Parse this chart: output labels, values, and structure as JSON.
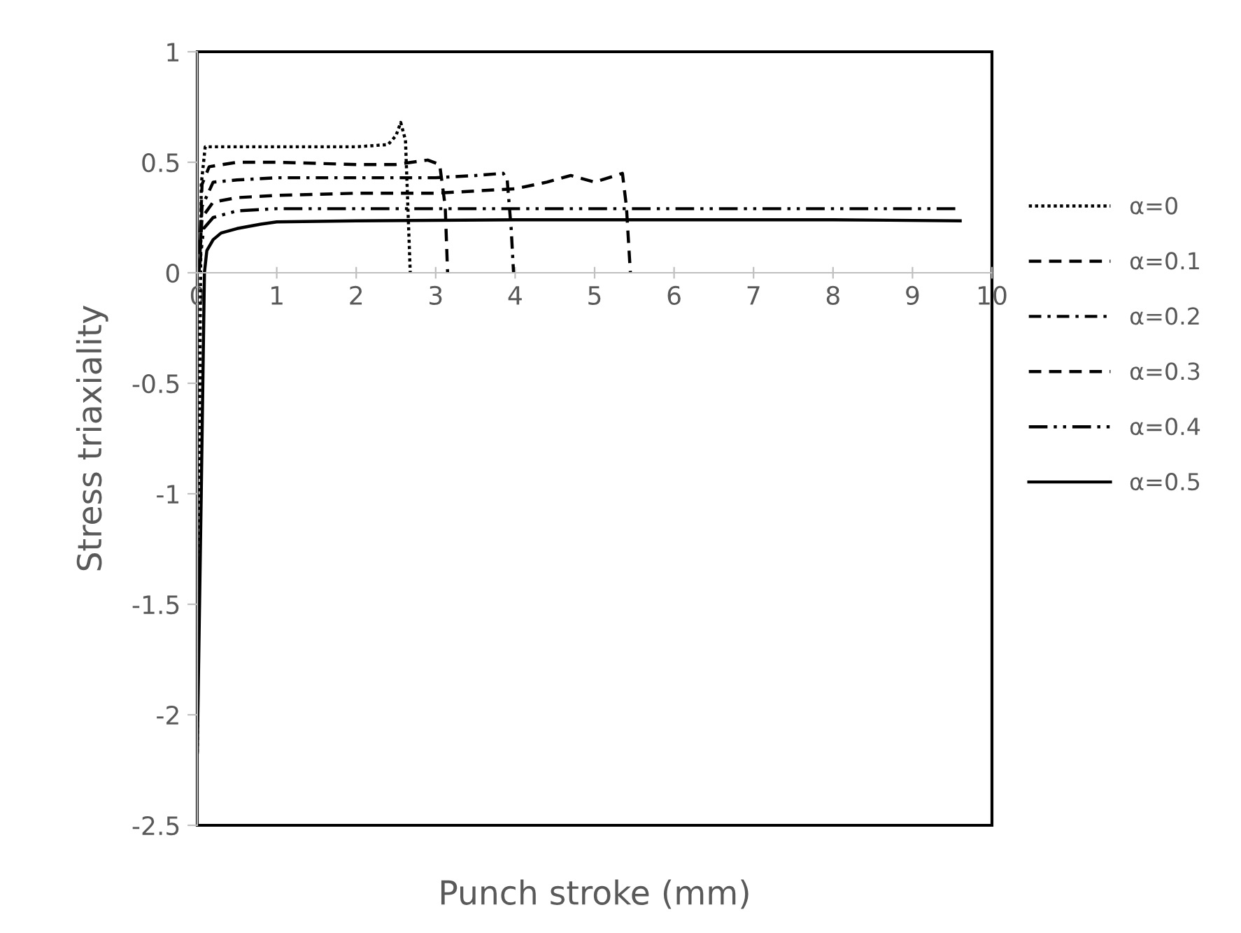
{
  "chart_data": {
    "type": "line",
    "xlabel": "Punch stroke (mm)",
    "ylabel": "Stress triaxiality",
    "xlim": [
      0,
      10
    ],
    "ylim": [
      -2.5,
      1
    ],
    "xticks": [
      0,
      1,
      2,
      3,
      4,
      5,
      6,
      7,
      8,
      9,
      10
    ],
    "yticks": [
      -2.5,
      -2,
      -1.5,
      -1,
      -0.5,
      0,
      0.5,
      1
    ],
    "grid": false,
    "legend": "right",
    "series": [
      {
        "name": "α=0",
        "color": "#000000",
        "line_style": "dotted",
        "x": [
          0,
          0.05,
          0.1,
          0.5,
          1,
          2,
          2.4,
          2.5,
          2.56,
          2.62,
          2.66,
          2.68
        ],
        "values": [
          -2.17,
          0.4,
          0.57,
          0.57,
          0.57,
          0.57,
          0.58,
          0.62,
          0.68,
          0.6,
          0.2,
          0
        ]
      },
      {
        "name": "α=0.1",
        "color": "#000000",
        "line_style": "dashed",
        "x": [
          0.02,
          0.06,
          0.15,
          0.5,
          1,
          2,
          2.5,
          2.9,
          3.05,
          3.12,
          3.15
        ],
        "values": [
          0,
          0.4,
          0.48,
          0.5,
          0.5,
          0.49,
          0.49,
          0.51,
          0.49,
          0.3,
          0
        ]
      },
      {
        "name": "α=0.2",
        "color": "#000000",
        "line_style": "dashdot",
        "x": [
          0.02,
          0.06,
          0.2,
          0.5,
          1,
          2,
          3,
          3.5,
          3.85,
          3.9,
          3.95,
          3.98
        ],
        "values": [
          0,
          0.3,
          0.41,
          0.42,
          0.43,
          0.43,
          0.43,
          0.44,
          0.45,
          0.42,
          0.2,
          0
        ]
      },
      {
        "name": "α=0.3",
        "color": "#000000",
        "line_style": "dashed",
        "x": [
          0.02,
          0.06,
          0.2,
          0.5,
          1,
          2,
          3,
          3.5,
          4,
          4.4,
          4.7,
          5,
          5.35,
          5.4,
          5.45
        ],
        "values": [
          0,
          0.25,
          0.32,
          0.34,
          0.35,
          0.36,
          0.36,
          0.37,
          0.38,
          0.41,
          0.44,
          0.41,
          0.45,
          0.3,
          0
        ]
      },
      {
        "name": "α=0.4",
        "color": "#000000",
        "line_style": "dashdotdot",
        "x": [
          0.02,
          0.08,
          0.2,
          0.5,
          1,
          2,
          4,
          6,
          8,
          9.6
        ],
        "values": [
          0,
          0.2,
          0.25,
          0.28,
          0.29,
          0.29,
          0.29,
          0.29,
          0.29,
          0.29
        ]
      },
      {
        "name": "α=0.5",
        "color": "#000000",
        "line_style": "solid",
        "x": [
          0,
          0.05,
          0.09,
          0.12,
          0.2,
          0.3,
          0.5,
          0.8,
          1,
          2,
          4,
          6,
          8,
          9.6
        ],
        "values": [
          -2.17,
          -1.0,
          0,
          0.1,
          0.15,
          0.18,
          0.2,
          0.22,
          0.23,
          0.235,
          0.24,
          0.24,
          0.24,
          0.235
        ]
      }
    ]
  }
}
